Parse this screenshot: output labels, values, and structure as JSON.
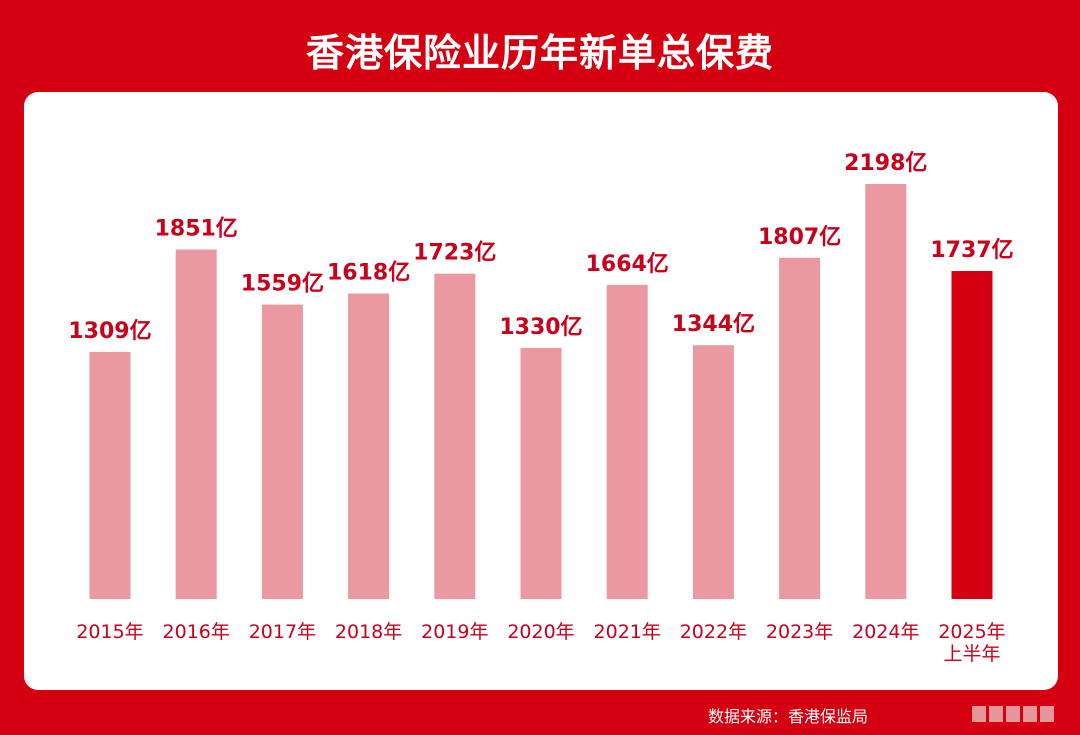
{
  "title": "香港保险业历年新单总保费",
  "source": "数据来源：香港保监局",
  "colors": {
    "background": "#d40012",
    "panel": "#ffffff",
    "bar": "#e9999f",
    "bar_highlight": "#d40012",
    "label": "#c8001c"
  },
  "chart_data": {
    "type": "bar",
    "title": "香港保险业历年新单总保费",
    "categories": [
      "2015年",
      "2016年",
      "2017年",
      "2018年",
      "2019年",
      "2020年",
      "2021年",
      "2022年",
      "2023年",
      "2024年",
      "2025年上半年"
    ],
    "category_lines": [
      [
        "2015年"
      ],
      [
        "2016年"
      ],
      [
        "2017年"
      ],
      [
        "2018年"
      ],
      [
        "2019年"
      ],
      [
        "2020年"
      ],
      [
        "2021年"
      ],
      [
        "2022年"
      ],
      [
        "2023年"
      ],
      [
        "2024年"
      ],
      [
        "2025年",
        "上半年"
      ]
    ],
    "values": [
      1309,
      1851,
      1559,
      1618,
      1723,
      1330,
      1664,
      1344,
      1807,
      2198,
      1737
    ],
    "value_labels": [
      "1309亿",
      "1851亿",
      "1559亿",
      "1618亿",
      "1723亿",
      "1330亿",
      "1664亿",
      "1344亿",
      "1807亿",
      "2198亿",
      "1737亿"
    ],
    "highlight_index": 10,
    "ylim": [
      0,
      2198
    ],
    "grid": false,
    "legend": "none"
  }
}
